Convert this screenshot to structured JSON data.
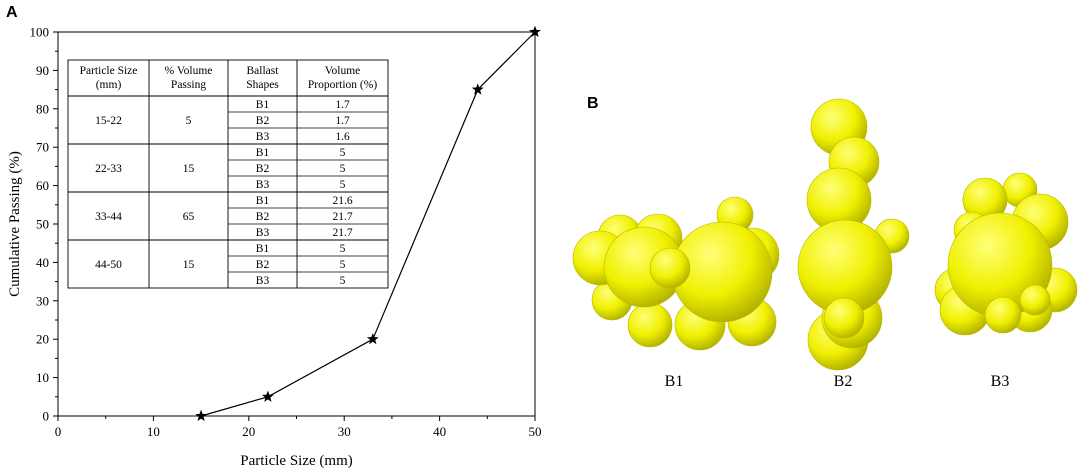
{
  "panels": {
    "a_letter": "A",
    "b_letter": "B"
  },
  "chart_data": {
    "type": "line",
    "title": "",
    "xlabel": "Particle Size (mm)",
    "ylabel": "Cumulative Passing (%)",
    "xlim": [
      0,
      50
    ],
    "ylim": [
      0,
      100
    ],
    "xticks": [
      "0",
      "10",
      "20",
      "30",
      "40",
      "50"
    ],
    "yticks": [
      "0",
      "10",
      "20",
      "30",
      "40",
      "50",
      "60",
      "70",
      "80",
      "90",
      "100"
    ],
    "grid": false,
    "marker": "star",
    "series": [
      {
        "x": [
          15,
          22,
          33,
          44,
          50
        ],
        "y": [
          0,
          5,
          20,
          85,
          100
        ]
      }
    ]
  },
  "inset_table": {
    "headers": [
      [
        "Particle Size",
        "(mm)"
      ],
      [
        "% Volume",
        "Passing"
      ],
      [
        "Ballast",
        "Shapes"
      ],
      [
        "Volume",
        "Proportion (%)"
      ]
    ],
    "groups": [
      {
        "size": "15-22",
        "passing": "5",
        "rows": [
          {
            "shape": "B1",
            "prop": "1.7"
          },
          {
            "shape": "B2",
            "prop": "1.7"
          },
          {
            "shape": "B3",
            "prop": "1.6"
          }
        ]
      },
      {
        "size": "22-33",
        "passing": "15",
        "rows": [
          {
            "shape": "B1",
            "prop": "5"
          },
          {
            "shape": "B2",
            "prop": "5"
          },
          {
            "shape": "B3",
            "prop": "5"
          }
        ]
      },
      {
        "size": "33-44",
        "passing": "65",
        "rows": [
          {
            "shape": "B1",
            "prop": "21.6"
          },
          {
            "shape": "B2",
            "prop": "21.7"
          },
          {
            "shape": "B3",
            "prop": "21.7"
          }
        ]
      },
      {
        "size": "44-50",
        "passing": "15",
        "rows": [
          {
            "shape": "B1",
            "prop": "5"
          },
          {
            "shape": "B2",
            "prop": "5"
          },
          {
            "shape": "B3",
            "prop": "5"
          }
        ]
      }
    ]
  },
  "shapes": {
    "labels": [
      "B1",
      "B2",
      "B3"
    ],
    "fill_color": "#f2f200"
  }
}
